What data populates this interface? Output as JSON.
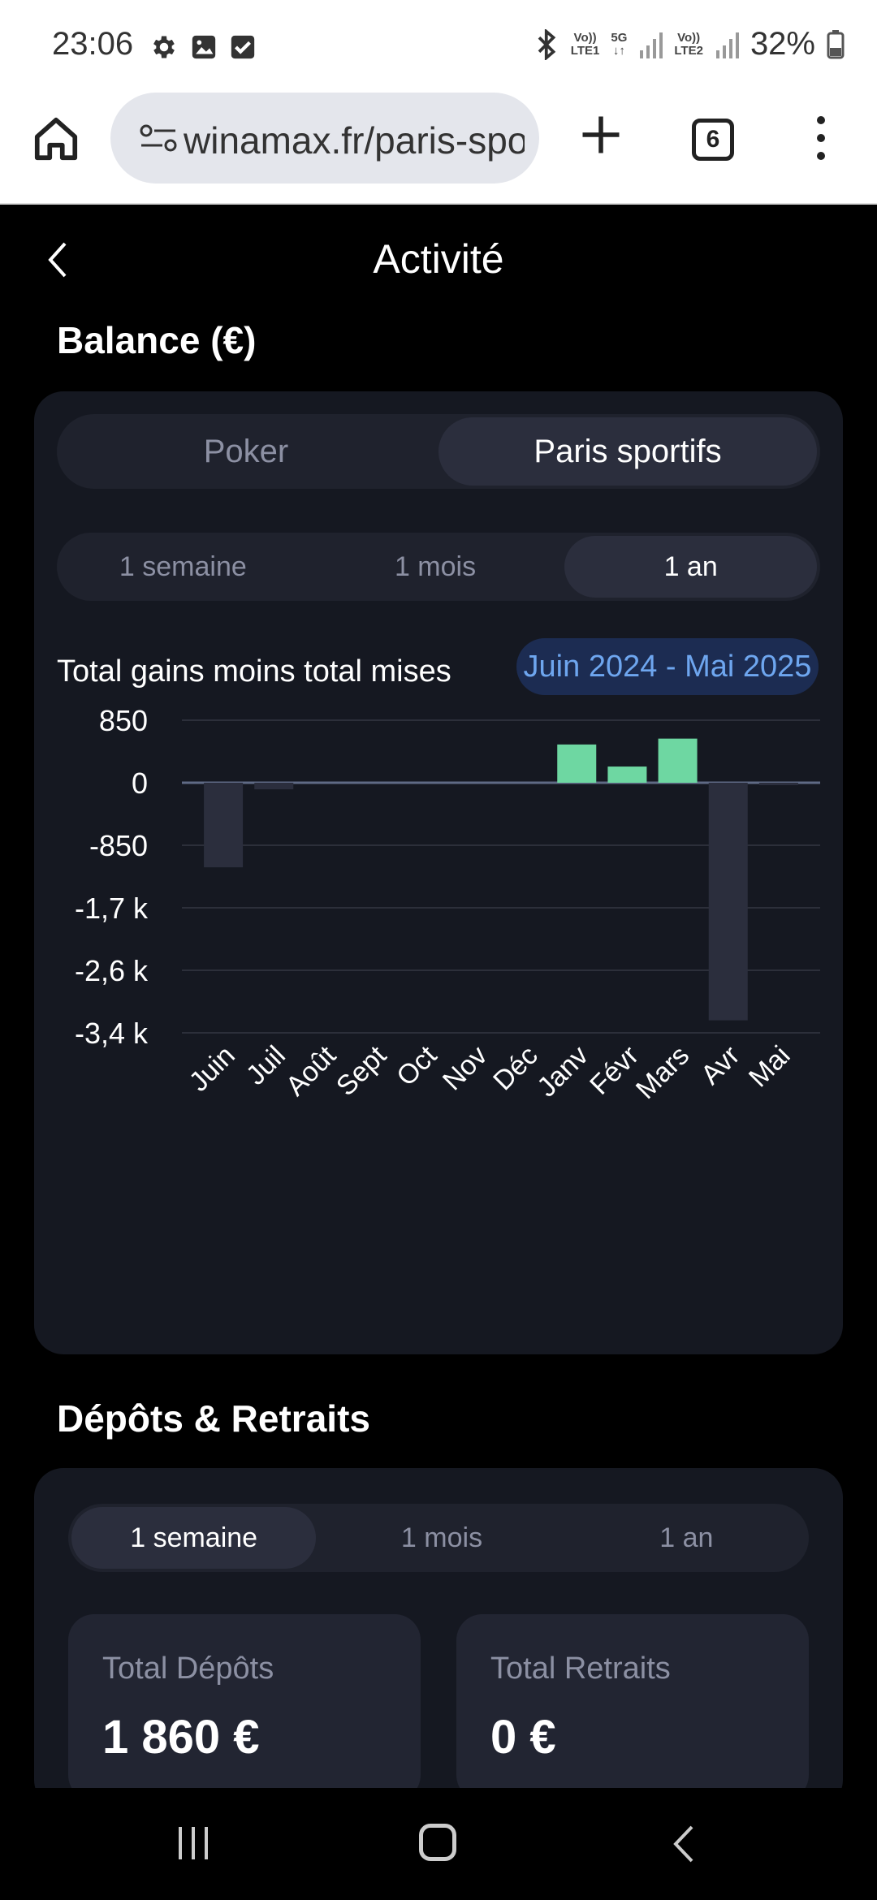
{
  "status_bar": {
    "time": "23:06",
    "left_icons": [
      "gear-icon",
      "image-icon",
      "check-icon"
    ],
    "net1": [
      "Vo)) ",
      "LTE1"
    ],
    "net5g": [
      "5G",
      "↓↑"
    ],
    "net2": [
      "Vo))",
      "LTE2"
    ],
    "battery": "32%"
  },
  "browser": {
    "url": "winamax.fr/paris-sportifs",
    "tab_count": "6"
  },
  "header": {
    "title": "Activité"
  },
  "balance": {
    "section_title": "Balance (€)",
    "product_tabs": [
      {
        "label": "Poker",
        "active": false
      },
      {
        "label": "Paris sportifs",
        "active": true
      }
    ],
    "period_tabs": [
      {
        "label": "1 semaine",
        "active": false
      },
      {
        "label": "1 mois",
        "active": false
      },
      {
        "label": "1 an",
        "active": true
      }
    ],
    "chart_caption": "Total gains moins total mises",
    "date_range": "Juin 2024 - Mai 2025"
  },
  "colors": {
    "positive_bar": "#6ed7a2",
    "negative_bar": "#2b2e3d",
    "grid": "#2c2f3a",
    "zero_line": "#5f6a85",
    "accent_badge_text": "#6ea6ef"
  },
  "chart_data": {
    "type": "bar",
    "categories": [
      "Juin",
      "Juil",
      "Août",
      "Sept",
      "Oct",
      "Nov",
      "Déc",
      "Janv",
      "Févr",
      "Mars",
      "Avr",
      "Mai"
    ],
    "values": [
      -1150,
      -90,
      0,
      0,
      0,
      0,
      0,
      520,
      220,
      600,
      -3230,
      -30
    ],
    "yticks": [
      850,
      0,
      -850,
      -1700,
      -2550,
      -3400
    ],
    "ytick_labels": [
      "850",
      "0",
      "-850",
      "-1,7 k",
      "-2,6 k",
      "-3,4 k"
    ],
    "ylim": [
      -3400,
      850
    ],
    "grid": true,
    "title": "",
    "xlabel": "",
    "ylabel": ""
  },
  "deposits": {
    "section_title": "Dépôts & Retraits",
    "period_tabs": [
      {
        "label": "1 semaine",
        "active": true
      },
      {
        "label": "1 mois",
        "active": false
      },
      {
        "label": "1 an",
        "active": false
      }
    ],
    "total_deposits_label": "Total Dépôts",
    "total_deposits_value": "1 860 €",
    "total_withdrawals_label": "Total Retraits",
    "total_withdrawals_value": "0 €"
  }
}
